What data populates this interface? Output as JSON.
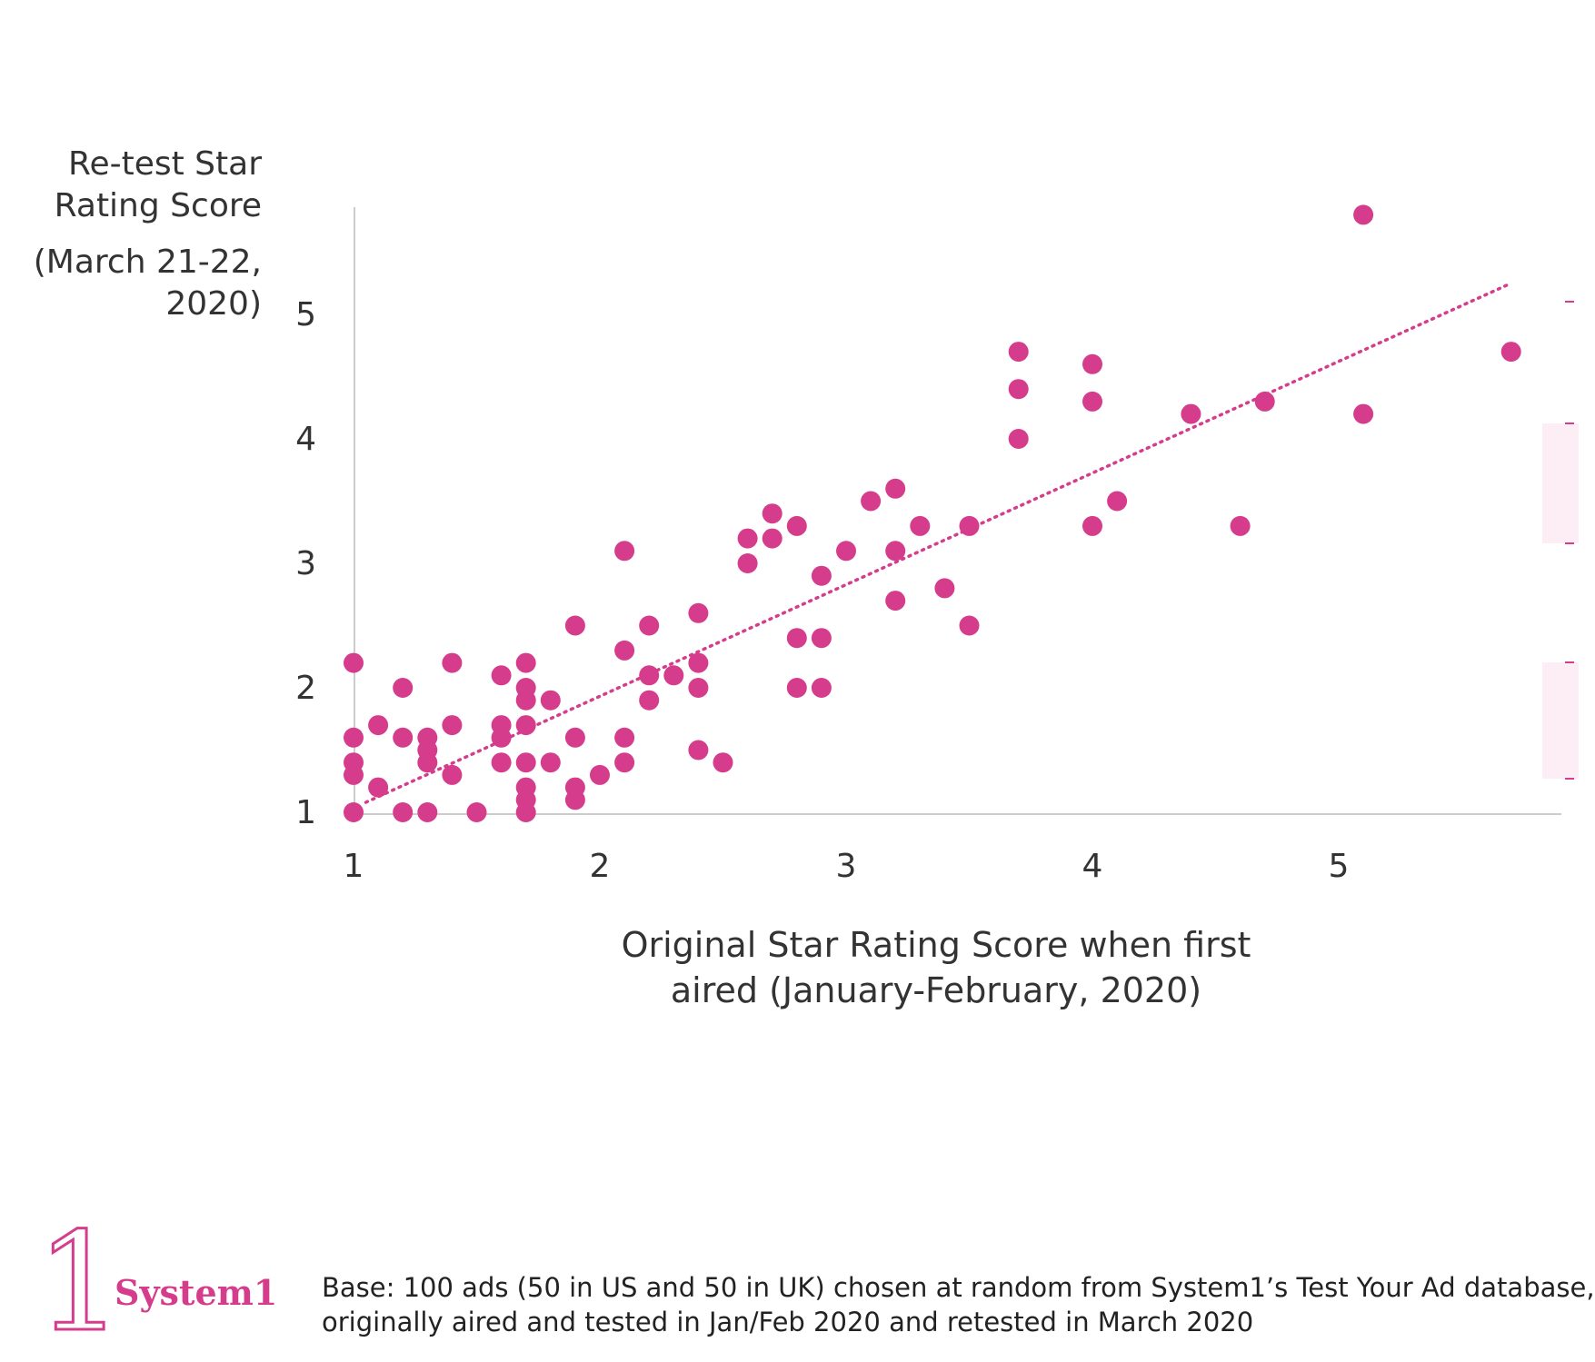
{
  "colors": {
    "accent": "#d63c8c",
    "text": "#333333",
    "axis": "#cccccc",
    "trend": "#d63c8c"
  },
  "chart_data": {
    "type": "scatter",
    "title": "",
    "ylabel_lines": [
      "Re-test Star",
      "Rating Score"
    ],
    "ylabel_sub_lines": [
      "(March 21-22,",
      "2020)"
    ],
    "xlabel_lines": [
      "Original Star Rating Score when first",
      "aired (January-February, 2020)"
    ],
    "xlim": [
      1,
      5.9
    ],
    "ylim": [
      1,
      5.9
    ],
    "xticks": [
      "1",
      "2",
      "3",
      "4",
      "5"
    ],
    "yticks": [
      "1",
      "2",
      "3",
      "4",
      "5"
    ],
    "trendline": {
      "style": "dotted",
      "x": [
        1.05,
        5.7
      ],
      "y": [
        1.08,
        5.25
      ]
    },
    "series": [
      {
        "points": [
          [
            1.0,
            1.0
          ],
          [
            1.0,
            1.3
          ],
          [
            1.0,
            1.4
          ],
          [
            1.0,
            1.6
          ],
          [
            1.0,
            2.2
          ],
          [
            1.1,
            1.2
          ],
          [
            1.1,
            1.7
          ],
          [
            1.2,
            1.0
          ],
          [
            1.2,
            1.6
          ],
          [
            1.2,
            2.0
          ],
          [
            1.3,
            1.0
          ],
          [
            1.3,
            1.4
          ],
          [
            1.3,
            1.5
          ],
          [
            1.3,
            1.6
          ],
          [
            1.4,
            1.3
          ],
          [
            1.4,
            1.7
          ],
          [
            1.4,
            2.2
          ],
          [
            1.5,
            1.0
          ],
          [
            1.6,
            1.4
          ],
          [
            1.6,
            1.6
          ],
          [
            1.6,
            1.7
          ],
          [
            1.6,
            2.1
          ],
          [
            1.7,
            1.0
          ],
          [
            1.7,
            1.1
          ],
          [
            1.7,
            1.2
          ],
          [
            1.7,
            1.4
          ],
          [
            1.7,
            1.7
          ],
          [
            1.7,
            1.9
          ],
          [
            1.7,
            2.0
          ],
          [
            1.7,
            2.2
          ],
          [
            1.8,
            1.4
          ],
          [
            1.8,
            1.9
          ],
          [
            1.9,
            1.1
          ],
          [
            1.9,
            1.2
          ],
          [
            1.9,
            1.6
          ],
          [
            1.9,
            2.5
          ],
          [
            2.0,
            1.3
          ],
          [
            2.1,
            1.4
          ],
          [
            2.1,
            1.6
          ],
          [
            2.1,
            2.3
          ],
          [
            2.1,
            3.1
          ],
          [
            2.2,
            1.9
          ],
          [
            2.2,
            2.1
          ],
          [
            2.2,
            2.5
          ],
          [
            2.3,
            2.1
          ],
          [
            2.4,
            1.5
          ],
          [
            2.4,
            2.0
          ],
          [
            2.4,
            2.2
          ],
          [
            2.4,
            2.6
          ],
          [
            2.5,
            1.4
          ],
          [
            2.6,
            3.0
          ],
          [
            2.6,
            3.2
          ],
          [
            2.7,
            3.2
          ],
          [
            2.7,
            3.4
          ],
          [
            2.8,
            2.0
          ],
          [
            2.8,
            2.4
          ],
          [
            2.8,
            3.3
          ],
          [
            2.9,
            2.0
          ],
          [
            2.9,
            2.4
          ],
          [
            2.9,
            2.9
          ],
          [
            3.0,
            3.1
          ],
          [
            3.1,
            3.5
          ],
          [
            3.2,
            2.7
          ],
          [
            3.2,
            3.1
          ],
          [
            3.2,
            3.6
          ],
          [
            3.3,
            3.3
          ],
          [
            3.4,
            2.8
          ],
          [
            3.5,
            2.5
          ],
          [
            3.5,
            3.3
          ],
          [
            3.7,
            4.0
          ],
          [
            3.7,
            4.4
          ],
          [
            3.7,
            4.7
          ],
          [
            4.0,
            3.3
          ],
          [
            4.0,
            4.3
          ],
          [
            4.0,
            4.6
          ],
          [
            4.1,
            3.5
          ],
          [
            4.4,
            4.2
          ],
          [
            4.6,
            3.3
          ],
          [
            4.7,
            4.3
          ],
          [
            5.1,
            4.2
          ],
          [
            5.1,
            5.8
          ],
          [
            5.7,
            4.7
          ]
        ]
      }
    ]
  },
  "logo": {
    "digit": "1",
    "brand": "System1"
  },
  "footnote_lines": [
    "Base: 100 ads (50 in US and 50 in UK) chosen at random from System1’s Test Your Ad database,",
    "originally aired and tested in Jan/Feb 2020 and retested in March 2020"
  ]
}
